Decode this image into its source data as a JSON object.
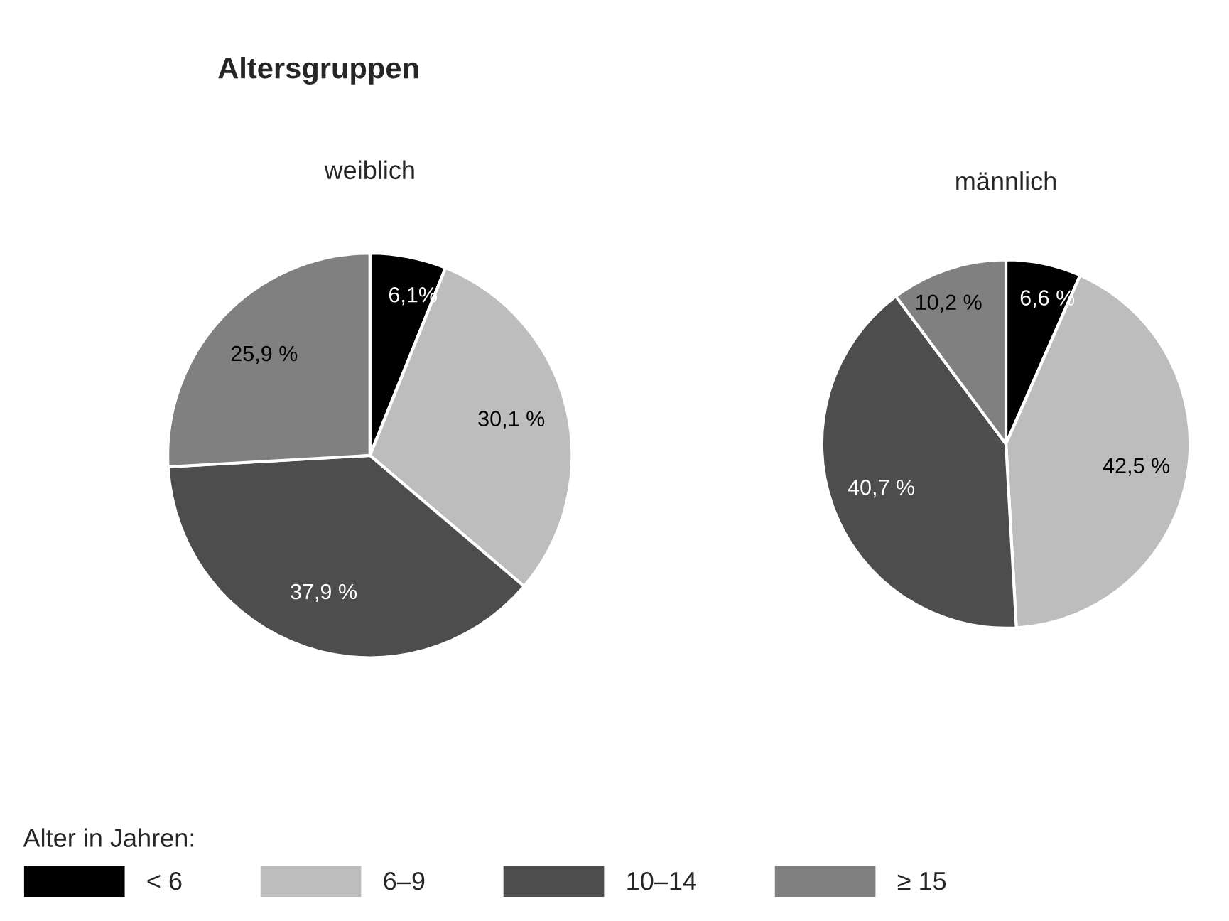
{
  "chart_data": [
    {
      "type": "pie",
      "title": "Altersgruppen",
      "subtitle": "weiblich",
      "categories": [
        "< 6",
        "6–9",
        "10–14",
        "≥ 15"
      ],
      "values": [
        6.1,
        30.1,
        37.9,
        25.9
      ],
      "value_labels": [
        "6,1%",
        "30,1 %",
        "37,9 %",
        "25,9 %"
      ],
      "colors": [
        "#000000",
        "#bdbdbd",
        "#4d4d4d",
        "#808080"
      ],
      "legend": "bottom",
      "legend_title": "Alter in Jahren:"
    },
    {
      "type": "pie",
      "subtitle": "männlich",
      "categories": [
        null,
        null,
        null,
        null
      ],
      "values": [
        6.6,
        42.5,
        40.7,
        10.2
      ],
      "value_labels": [
        "6,6 %",
        "42,5 %",
        "40,7 %",
        "10,2 %"
      ],
      "colors": [
        "#000000",
        "#bdbdbd",
        "#4d4d4d",
        "#808080"
      ]
    }
  ]
}
